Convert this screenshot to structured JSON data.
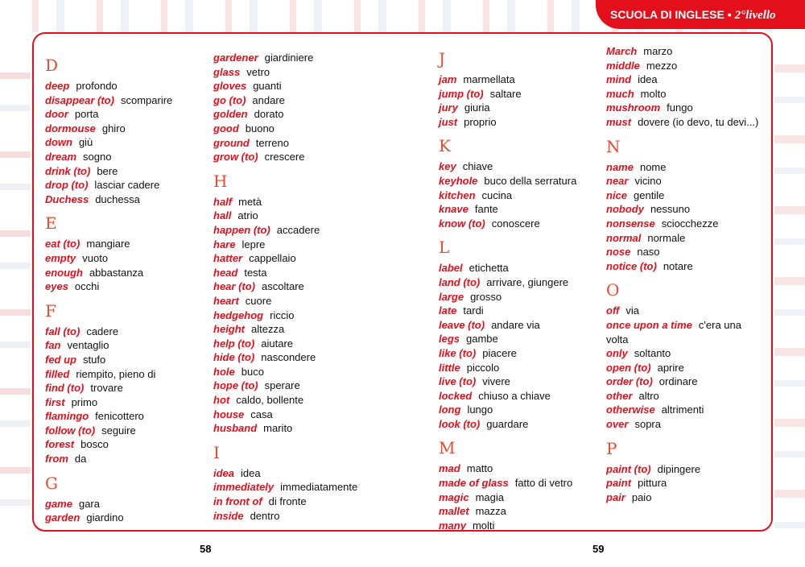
{
  "header": {
    "banner": "SCUOLA DI INGLESE •",
    "level": "2°livello"
  },
  "pages": {
    "left": "58",
    "right": "59"
  },
  "colors": {
    "accent": "#e3101c",
    "heading": "#ea4a2f"
  },
  "columns": [
    [
      {
        "letter": "D",
        "entries": [
          [
            "deep",
            "profondo"
          ],
          [
            "disappear (to)",
            "scomparire"
          ],
          [
            "door",
            "porta"
          ],
          [
            "dormouse",
            "ghiro"
          ],
          [
            "down",
            "giù"
          ],
          [
            "dream",
            "sogno"
          ],
          [
            "drink (to)",
            "bere"
          ],
          [
            "drop (to)",
            "lasciar cadere"
          ],
          [
            "Duchess",
            "duchessa"
          ]
        ]
      },
      {
        "letter": "E",
        "entries": [
          [
            "eat (to)",
            "mangiare"
          ],
          [
            "empty",
            "vuoto"
          ],
          [
            "enough",
            "abbastanza"
          ],
          [
            "eyes",
            "occhi"
          ]
        ]
      },
      {
        "letter": "F",
        "entries": [
          [
            "fall (to)",
            "cadere"
          ],
          [
            "fan",
            "ventaglio"
          ],
          [
            "fed up",
            "stufo"
          ],
          [
            "filled",
            "riempito, pieno di"
          ],
          [
            "find (to)",
            "trovare"
          ],
          [
            "first",
            "primo"
          ],
          [
            "flamingo",
            "fenicottero"
          ],
          [
            "follow (to)",
            "seguire"
          ],
          [
            "forest",
            "bosco"
          ],
          [
            "from",
            "da"
          ]
        ]
      },
      {
        "letter": "G",
        "entries": [
          [
            "game",
            "gara"
          ],
          [
            "garden",
            "giardino"
          ]
        ]
      }
    ],
    [
      {
        "letter": "",
        "entries": [
          [
            "gardener",
            "giardiniere"
          ],
          [
            "glass",
            "vetro"
          ],
          [
            "gloves",
            "guanti"
          ],
          [
            "go (to)",
            "andare"
          ],
          [
            "golden",
            "dorato"
          ],
          [
            "good",
            "buono"
          ],
          [
            "ground",
            "terreno"
          ],
          [
            "grow (to)",
            "crescere"
          ]
        ]
      },
      {
        "letter": "H",
        "entries": [
          [
            "half",
            "metà"
          ],
          [
            "hall",
            "atrio"
          ],
          [
            "happen (to)",
            "accadere"
          ],
          [
            "hare",
            "lepre"
          ],
          [
            "hatter",
            "cappellaio"
          ],
          [
            "head",
            "testa"
          ],
          [
            "hear (to)",
            "ascoltare"
          ],
          [
            "heart",
            "cuore"
          ],
          [
            "hedgehog",
            "riccio"
          ],
          [
            "height",
            "altezza"
          ],
          [
            "help (to)",
            "aiutare"
          ],
          [
            "hide (to)",
            "nascondere"
          ],
          [
            "hole",
            "buco"
          ],
          [
            "hope (to)",
            "sperare"
          ],
          [
            "hot",
            "caldo, bollente"
          ],
          [
            "house",
            "casa"
          ],
          [
            "husband",
            "marito"
          ]
        ]
      },
      {
        "letter": "I",
        "entries": [
          [
            "idea",
            "idea"
          ],
          [
            "immediately",
            "immediatamente"
          ],
          [
            "in front of",
            "di fronte"
          ],
          [
            "inside",
            "dentro"
          ]
        ]
      }
    ],
    [
      {
        "letter": "J",
        "entries": [
          [
            "jam",
            "marmellata"
          ],
          [
            "jump (to)",
            "saltare"
          ],
          [
            "jury",
            "giuria"
          ],
          [
            "just",
            "proprio"
          ]
        ]
      },
      {
        "letter": "K",
        "entries": [
          [
            "key",
            "chiave"
          ],
          [
            "keyhole",
            "buco della serratura"
          ],
          [
            "kitchen",
            "cucina"
          ],
          [
            "knave",
            "fante"
          ],
          [
            "know (to)",
            "conoscere"
          ]
        ]
      },
      {
        "letter": "L",
        "entries": [
          [
            "label",
            "etichetta"
          ],
          [
            "land (to)",
            "arrivare, giungere"
          ],
          [
            "large",
            "grosso"
          ],
          [
            "late",
            "tardi"
          ],
          [
            "leave (to)",
            "andare via"
          ],
          [
            "legs",
            "gambe"
          ],
          [
            "like (to)",
            "piacere"
          ],
          [
            "little",
            "piccolo"
          ],
          [
            "live (to)",
            "vivere"
          ],
          [
            "locked",
            "chiuso a chiave"
          ],
          [
            "long",
            "lungo"
          ],
          [
            "look (to)",
            "guardare"
          ]
        ]
      },
      {
        "letter": "M",
        "entries": [
          [
            "mad",
            "matto"
          ],
          [
            "made of glass",
            "fatto di vetro"
          ],
          [
            "magic",
            "magia"
          ],
          [
            "mallet",
            "mazza"
          ],
          [
            "many",
            "molti"
          ]
        ]
      }
    ],
    [
      {
        "letter": "",
        "entries": [
          [
            "March",
            "marzo"
          ],
          [
            "middle",
            "mezzo"
          ],
          [
            "mind",
            "idea"
          ],
          [
            "much",
            "molto"
          ],
          [
            "mushroom",
            "fungo"
          ],
          [
            "must",
            "dovere (io devo, tu devi...)"
          ]
        ]
      },
      {
        "letter": "N",
        "entries": [
          [
            "name",
            "nome"
          ],
          [
            "near",
            "vicino"
          ],
          [
            "nice",
            "gentile"
          ],
          [
            "nobody",
            "nessuno"
          ],
          [
            "nonsense",
            "sciocchezze"
          ],
          [
            "normal",
            "normale"
          ],
          [
            "nose",
            "naso"
          ],
          [
            "notice (to)",
            "notare"
          ]
        ]
      },
      {
        "letter": "O",
        "entries": [
          [
            "off",
            "via"
          ],
          [
            "once upon a time",
            "c'era una volta"
          ],
          [
            "only",
            "soltanto"
          ],
          [
            "open (to)",
            "aprire"
          ],
          [
            "order (to)",
            "ordinare"
          ],
          [
            "other",
            "altro"
          ],
          [
            "otherwise",
            "altrimenti"
          ],
          [
            "over",
            "sopra"
          ]
        ]
      },
      {
        "letter": "P",
        "entries": [
          [
            "paint (to)",
            "dipingere"
          ],
          [
            "paint",
            "pittura"
          ],
          [
            "pair",
            "paio"
          ]
        ]
      }
    ]
  ]
}
